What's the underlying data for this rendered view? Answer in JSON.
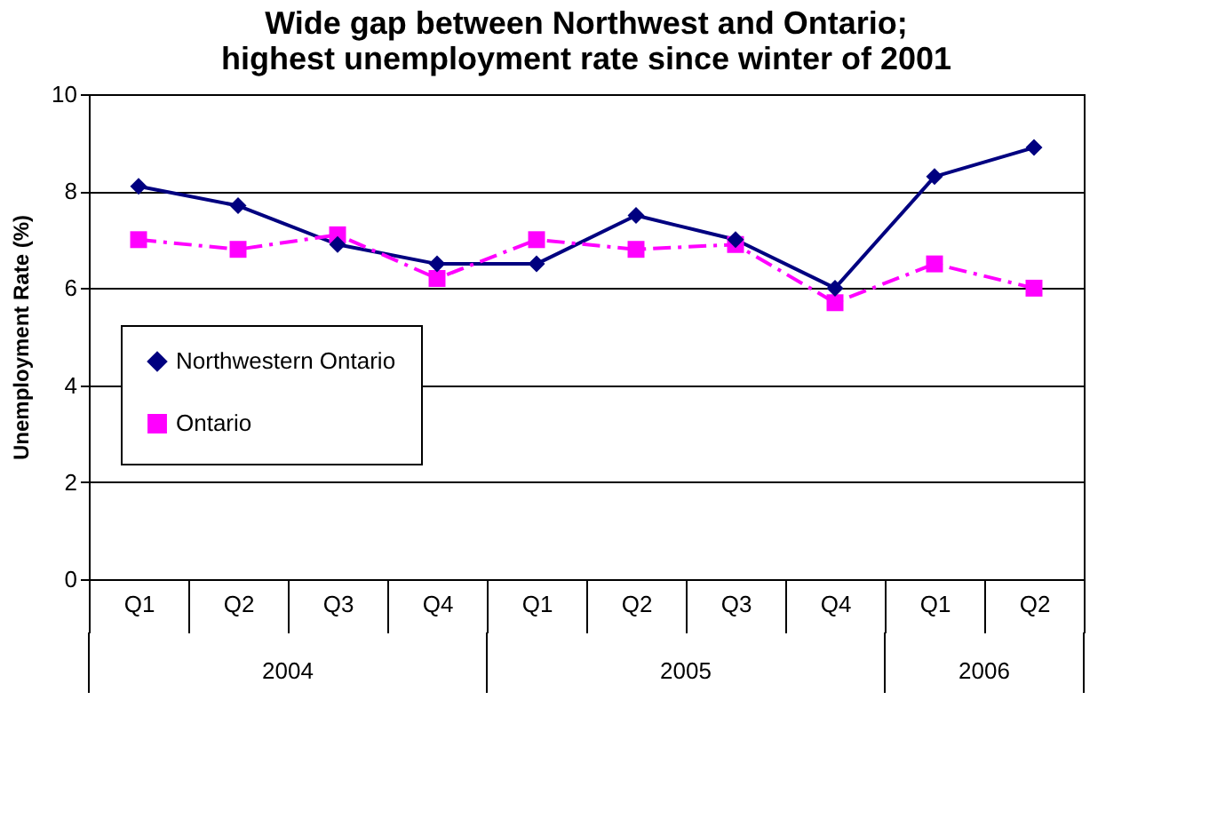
{
  "chart_data": {
    "type": "line",
    "title": "Wide gap between Northwest and Ontario; highest unemployment rate since winter of 2001",
    "ylabel": "Unemployment Rate (%)",
    "categories": [
      "Q1",
      "Q2",
      "Q3",
      "Q4",
      "Q1",
      "Q2",
      "Q3",
      "Q4",
      "Q1",
      "Q2"
    ],
    "annotations": [
      "2004",
      "2005",
      "2006"
    ],
    "series": [
      {
        "name": "Northwestern Ontario",
        "color": "#000080",
        "marker": "diamond",
        "line_style": "solid",
        "values": [
          8.1,
          7.7,
          6.9,
          6.5,
          6.5,
          7.5,
          7.0,
          6.0,
          8.3,
          8.9
        ]
      },
      {
        "name": "Ontario",
        "color": "#ff00ff",
        "marker": "square",
        "line_style": "dashed",
        "values": [
          7.0,
          6.8,
          7.1,
          6.2,
          7.0,
          6.8,
          6.9,
          5.7,
          6.5,
          6.0
        ]
      }
    ],
    "ylim": [
      0,
      10
    ],
    "yticks": [
      0,
      2,
      4,
      6,
      8,
      10
    ],
    "grid": "y",
    "legend": "left"
  }
}
